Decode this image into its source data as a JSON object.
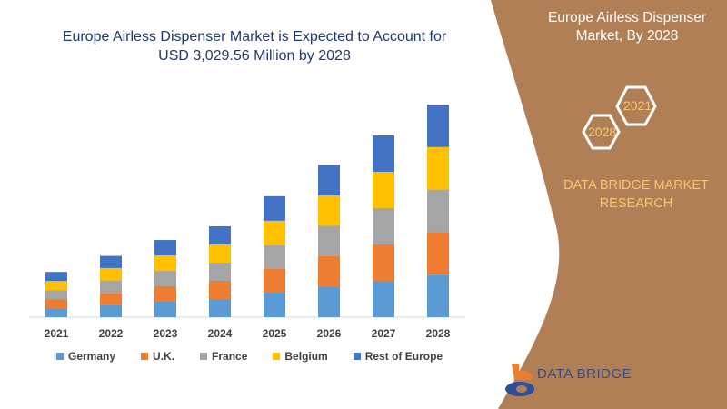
{
  "header": {
    "title_line1": "Europe Airless Dispenser Market is Expected to Account for",
    "title_line2": "USD 3,029.56 Million by 2028"
  },
  "side_panel": {
    "title_line1": "Europe Airless Dispenser",
    "title_line2": "Market, By 2028",
    "hex_start": "2021",
    "hex_end": "2028",
    "research_line1": "DATA BRIDGE MARKET",
    "research_line2": "RESEARCH",
    "logo_text": "DATA BRIDGE",
    "panel_color": "#b07f56",
    "accent_color": "#f7c56e"
  },
  "chart_data": {
    "type": "bar",
    "stacked": true,
    "title": "",
    "xlabel": "",
    "ylabel": "",
    "grid": false,
    "legend_position": "bottom",
    "categories": [
      "2021",
      "2022",
      "2023",
      "2024",
      "2025",
      "2026",
      "2027",
      "2028"
    ],
    "series": [
      {
        "name": "Germany",
        "color": "#5b9bd5",
        "values": [
          129,
          173,
          220,
          259,
          350,
          434,
          518,
          606
        ]
      },
      {
        "name": "U.K.",
        "color": "#ed7d31",
        "values": [
          129,
          173,
          220,
          259,
          337,
          434,
          518,
          606
        ]
      },
      {
        "name": "France",
        "color": "#a5a5a5",
        "values": [
          129,
          177,
          220,
          259,
          337,
          434,
          518,
          606
        ]
      },
      {
        "name": "Belgium",
        "color": "#ffc000",
        "values": [
          129,
          177,
          220,
          259,
          350,
          434,
          518,
          606
        ]
      },
      {
        "name": "Rest of Europe",
        "color": "#4472c4",
        "values": [
          129,
          173,
          220,
          259,
          350,
          434,
          518,
          606
        ]
      }
    ]
  }
}
